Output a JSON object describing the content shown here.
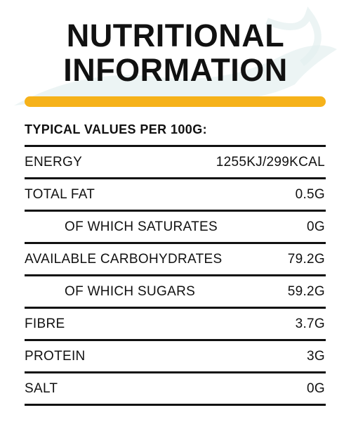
{
  "title": [
    "NUTRITIONAL",
    "INFORMATION"
  ],
  "header": "TYPICAL VALUES PER 100G:",
  "rows": [
    {
      "label": "ENERGY",
      "value": "1255KJ/299KCAL",
      "indent": false
    },
    {
      "label": "TOTAL FAT",
      "value": "0.5G",
      "indent": false
    },
    {
      "label": "OF WHICH SATURATES",
      "value": "0G",
      "indent": true
    },
    {
      "label": "AVAILABLE CARBOHYDRATES",
      "value": "79.2G",
      "indent": false
    },
    {
      "label": "OF WHICH SUGARS",
      "value": "59.2G",
      "indent": true
    },
    {
      "label": "FIBRE",
      "value": "3.7G",
      "indent": false
    },
    {
      "label": "PROTEIN",
      "value": "3G",
      "indent": false
    },
    {
      "label": "SALT",
      "value": "0G",
      "indent": false
    }
  ]
}
